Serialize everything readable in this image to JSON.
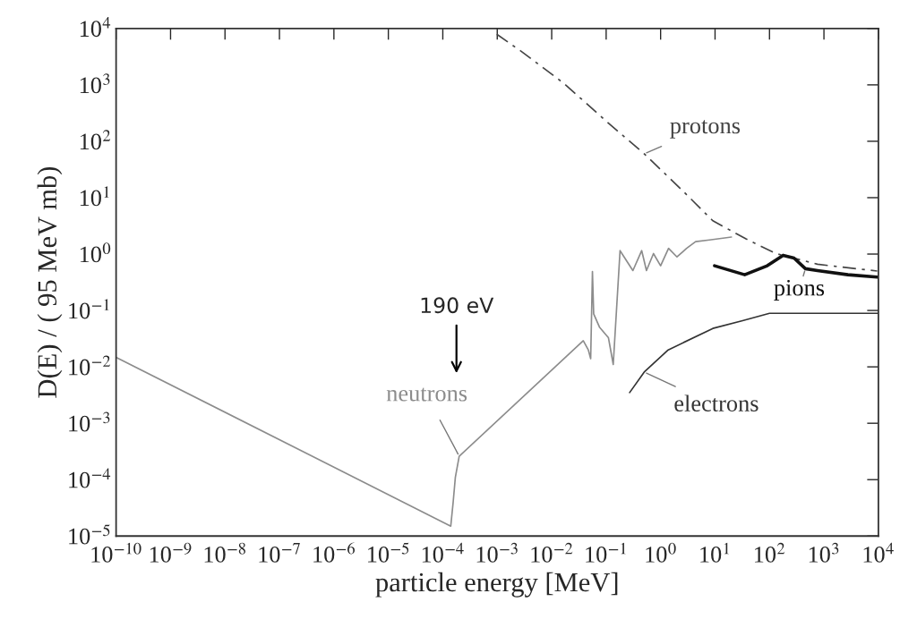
{
  "chart_data": {
    "type": "line",
    "xlabel": "particle energy [MeV]",
    "ylabel": "D(E) / ( 95 MeV mb)",
    "log": "xy",
    "grid": false,
    "marker": "none",
    "xlim": [
      1e-10,
      10000
    ],
    "ylim": [
      1e-05,
      10000
    ],
    "xticks": [
      {
        "value": 1e-10,
        "label": "10$^{−10}$"
      },
      {
        "value": 1e-09,
        "label": "10$^{−9}$"
      },
      {
        "value": 1e-08,
        "label": "10$^{−8}$"
      },
      {
        "value": 1e-07,
        "label": "10$^{−7}$"
      },
      {
        "value": 1e-06,
        "label": "10$^{−6}$"
      },
      {
        "value": 1e-05,
        "label": "10$^{−5}$"
      },
      {
        "value": 0.0001,
        "label": "10$^{−4}$"
      },
      {
        "value": 0.001,
        "label": "10$^{−3}$"
      },
      {
        "value": 0.01,
        "label": "10$^{−2}$"
      },
      {
        "value": 0.1,
        "label": "10$^{−1}$"
      },
      {
        "value": 1,
        "label": "10$^{0}$"
      },
      {
        "value": 10,
        "label": "10$^{1}$"
      },
      {
        "value": 100,
        "label": "10$^{2}$"
      },
      {
        "value": 1000,
        "label": "10$^{3}$"
      },
      {
        "value": 10000,
        "label": "10$^{4}$"
      }
    ],
    "yticks": [
      {
        "value": 1e-05,
        "label": "10$^{−5}$"
      },
      {
        "value": 0.0001,
        "label": "10$^{−4}$"
      },
      {
        "value": 0.001,
        "label": "10$^{−3}$"
      },
      {
        "value": 0.01,
        "label": "10$^{−2}$"
      },
      {
        "value": 0.1,
        "label": "10$^{−1}$"
      },
      {
        "value": 1,
        "label": "10$^{0}$"
      },
      {
        "value": 10,
        "label": "10$^{1}$"
      },
      {
        "value": 100,
        "label": "10$^{2}$"
      },
      {
        "value": 1000,
        "label": "10$^{3}$"
      },
      {
        "value": 10000,
        "label": "10$^{4}$"
      }
    ],
    "series": [
      {
        "name": "neutrons",
        "color": "#8c8c8c",
        "line_style": "solid",
        "x": [
          1e-10,
          0.00014,
          0.000155,
          0.00017,
          0.0002,
          0.038,
          0.047,
          0.052,
          0.056,
          0.059,
          0.076,
          0.11,
          0.135,
          0.18,
          0.31,
          0.45,
          0.55,
          0.74,
          1.0,
          1.4,
          2.0,
          3.0,
          4.4,
          7.9,
          20
        ],
        "values": [
          0.0148,
          1.5e-05,
          4e-05,
          0.00011,
          0.00026,
          0.029,
          0.02,
          0.014,
          0.49,
          0.087,
          0.05,
          0.033,
          0.011,
          1.15,
          0.51,
          1.15,
          0.51,
          1.02,
          0.62,
          1.26,
          0.89,
          1.26,
          1.66,
          1.78,
          2.0
        ]
      },
      {
        "name": "protons",
        "color": "#444444",
        "line_style": "dashed",
        "x": [
          0.00098,
          0.0029,
          0.017,
          0.11,
          0.5,
          2.6,
          9.1,
          37,
          132,
          760,
          9500
        ],
        "values": [
          7900,
          3800,
          1050,
          210,
          60,
          13,
          3.9,
          1.86,
          1.02,
          0.66,
          0.5
        ]
      },
      {
        "name": "pions",
        "color": "#111111",
        "line_style": "solid",
        "x": [
          9.8,
          35,
          91,
          178,
          282,
          457,
          760,
          2750,
          9500
        ],
        "values": [
          0.62,
          0.43,
          0.62,
          0.95,
          0.85,
          0.55,
          0.51,
          0.43,
          0.39
        ]
      },
      {
        "name": "electrons",
        "color": "#333333",
        "line_style": "solid",
        "x": [
          0.27,
          0.5,
          1.38,
          9.1,
          32,
          100,
          10000
        ],
        "values": [
          0.0035,
          0.0081,
          0.02,
          0.048,
          0.066,
          0.089,
          0.089
        ]
      }
    ],
    "annotations": [
      "190 eV"
    ]
  }
}
